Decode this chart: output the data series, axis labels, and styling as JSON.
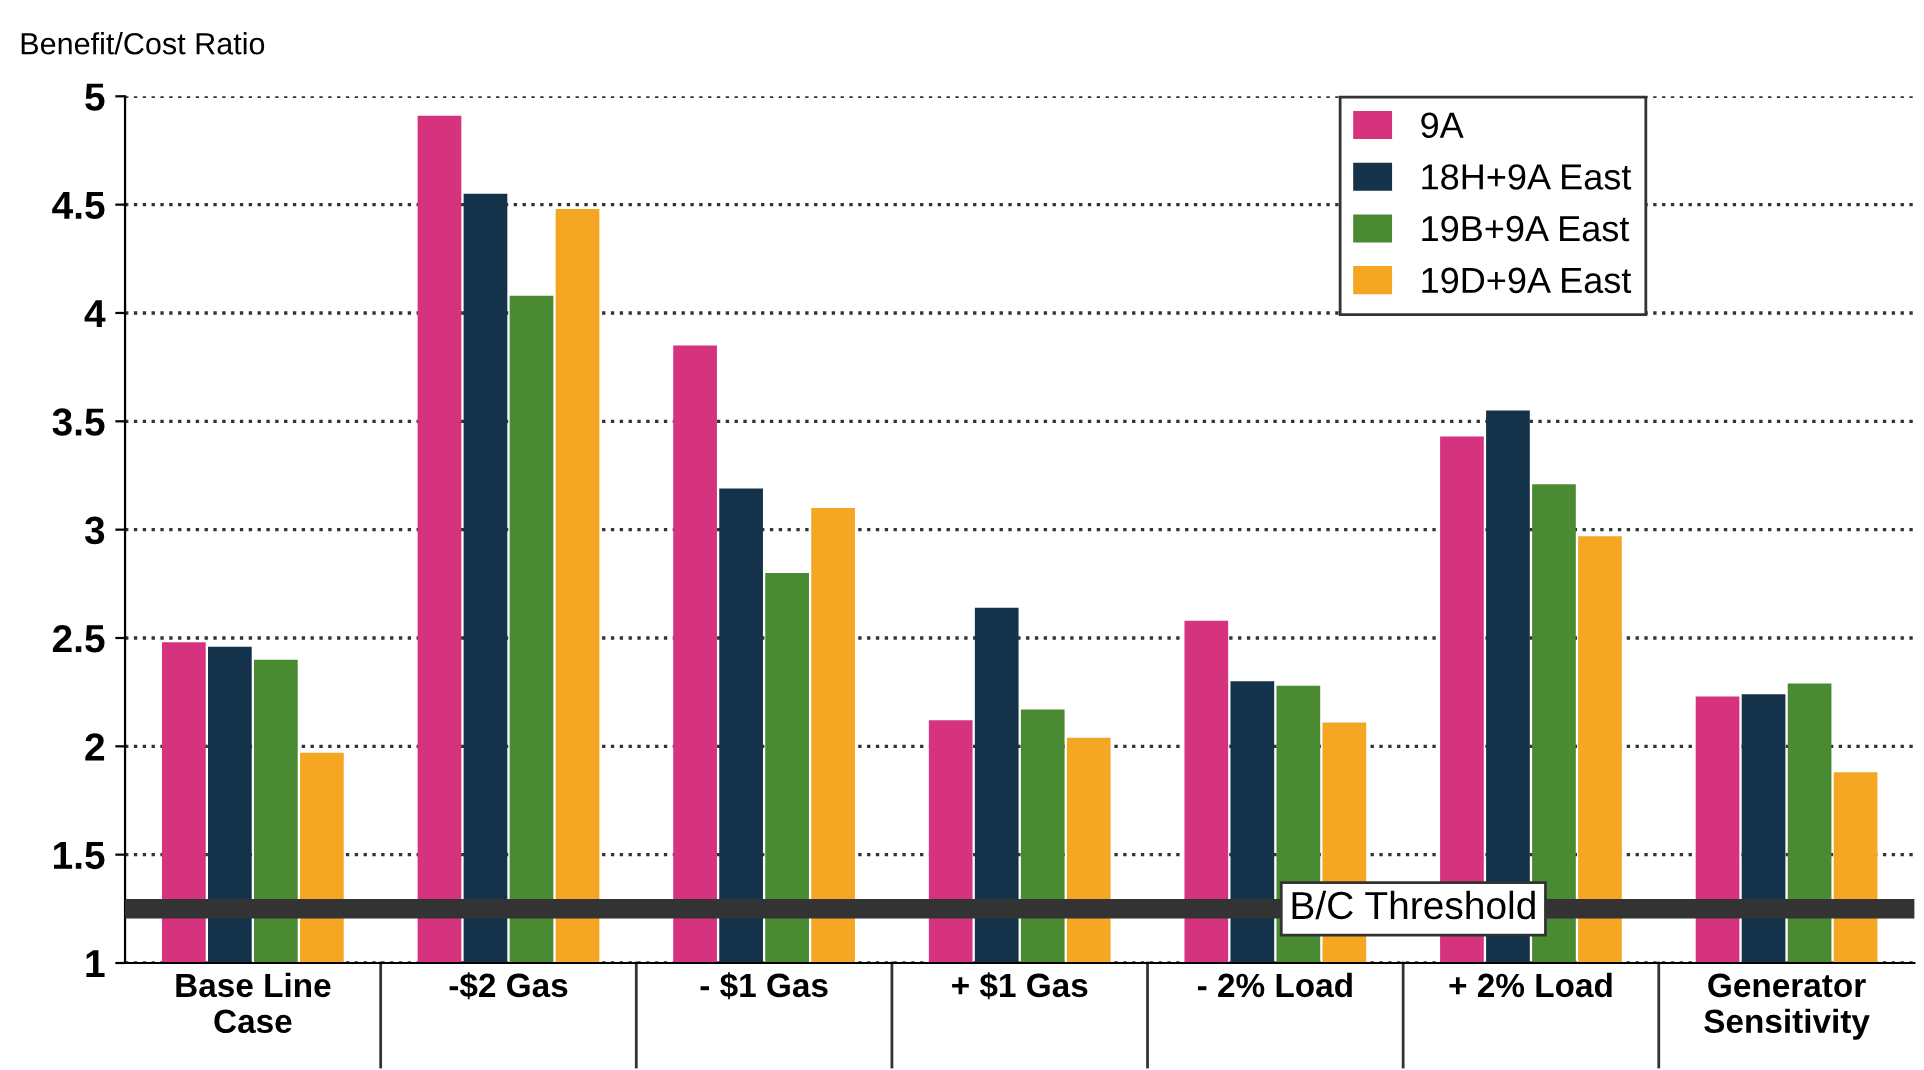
{
  "chart_data": {
    "type": "bar",
    "ylabel": "Benefit/Cost Ratio",
    "categories": [
      "Base Line\nCase",
      "-$2 Gas",
      "- $1 Gas",
      "+ $1 Gas",
      "- 2% Load",
      "+ 2% Load",
      "Generator\nSensitivity"
    ],
    "series": [
      {
        "name": "9A",
        "color": "#d6337f",
        "values": [
          2.48,
          4.91,
          3.85,
          2.12,
          2.58,
          3.43,
          2.23
        ]
      },
      {
        "name": "18H+9A East",
        "color": "#14324a",
        "values": [
          2.46,
          4.55,
          3.19,
          2.64,
          2.3,
          3.55,
          2.24
        ]
      },
      {
        "name": "19B+9A East",
        "color": "#4a8a32",
        "values": [
          2.4,
          4.08,
          2.8,
          2.17,
          2.28,
          3.21,
          2.29
        ]
      },
      {
        "name": "19D+9A East",
        "color": "#f5a623",
        "values": [
          1.97,
          4.48,
          3.1,
          2.04,
          2.11,
          2.97,
          1.88
        ]
      }
    ],
    "ylim": [
      1,
      5
    ],
    "yticks": [
      1,
      1.5,
      2,
      2.5,
      3,
      3.5,
      4,
      4.5,
      5
    ],
    "ref_lines": [
      {
        "axis": "y",
        "value": 1.25,
        "label": "B/C Threshold",
        "color": "#333333"
      }
    ],
    "grid": "y",
    "legend": "top right"
  }
}
